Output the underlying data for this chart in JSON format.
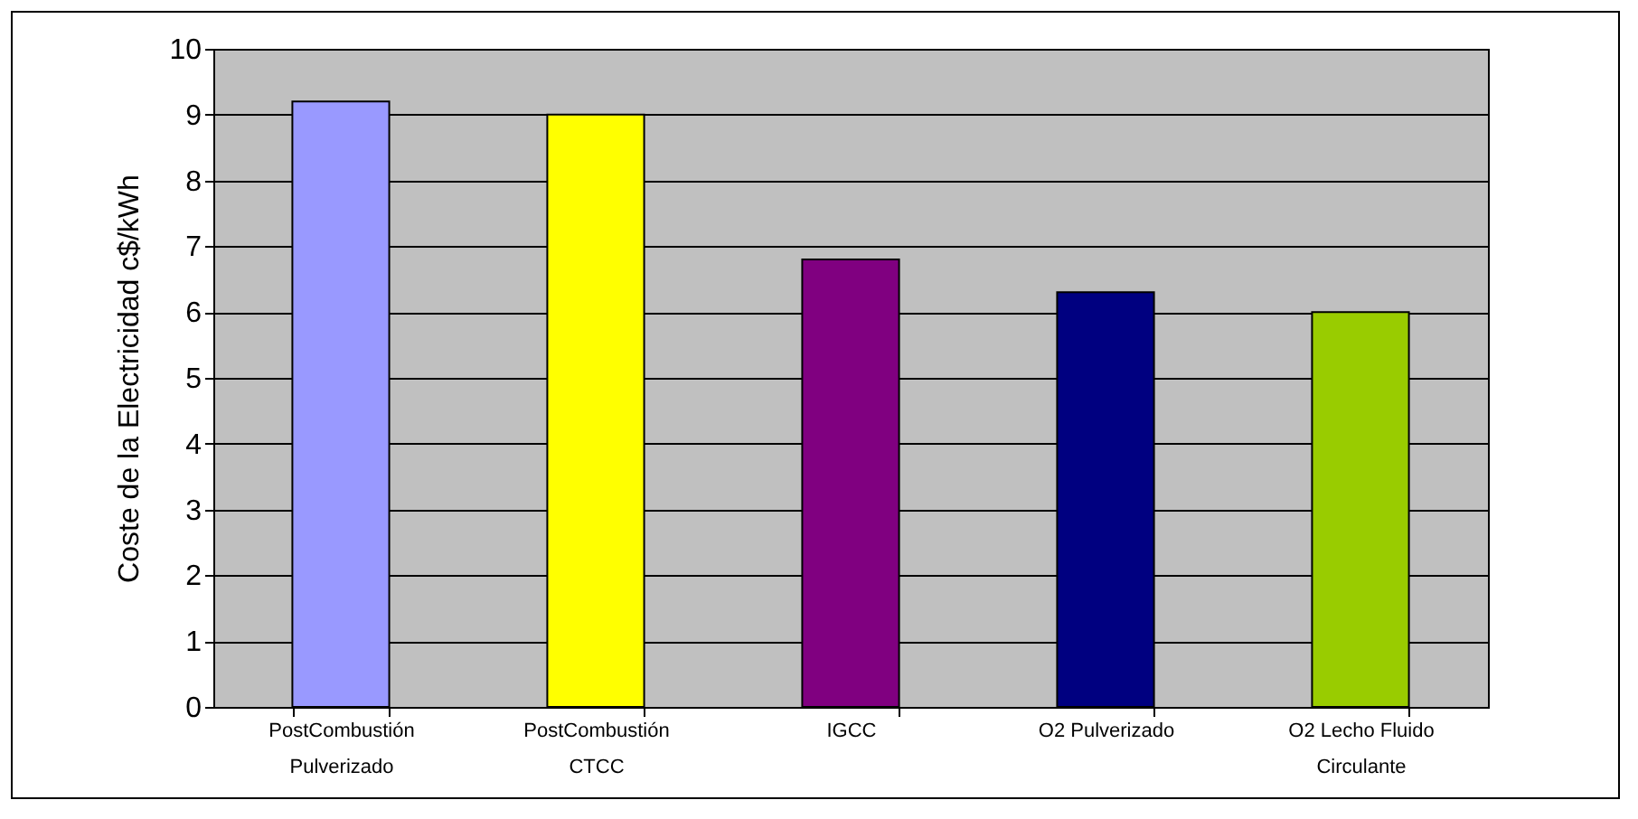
{
  "chart_data": {
    "type": "bar",
    "ylabel": "Coste de la Electricidad c$/kWh",
    "categories": [
      "PostCombustión\nPulverizado",
      "PostCombustión\nCTCC",
      "IGCC",
      "O2 Pulverizado",
      "O2 Lecho Fluido\nCirculante"
    ],
    "values": [
      9.2,
      9.0,
      6.8,
      6.3,
      6.0
    ],
    "colors": [
      "#9999ff",
      "#ffff00",
      "#800080",
      "#000080",
      "#99cc00"
    ],
    "ylim": [
      0,
      10
    ],
    "yticks": [
      0,
      1,
      2,
      3,
      4,
      5,
      6,
      7,
      8,
      9,
      10
    ],
    "grid": true
  }
}
